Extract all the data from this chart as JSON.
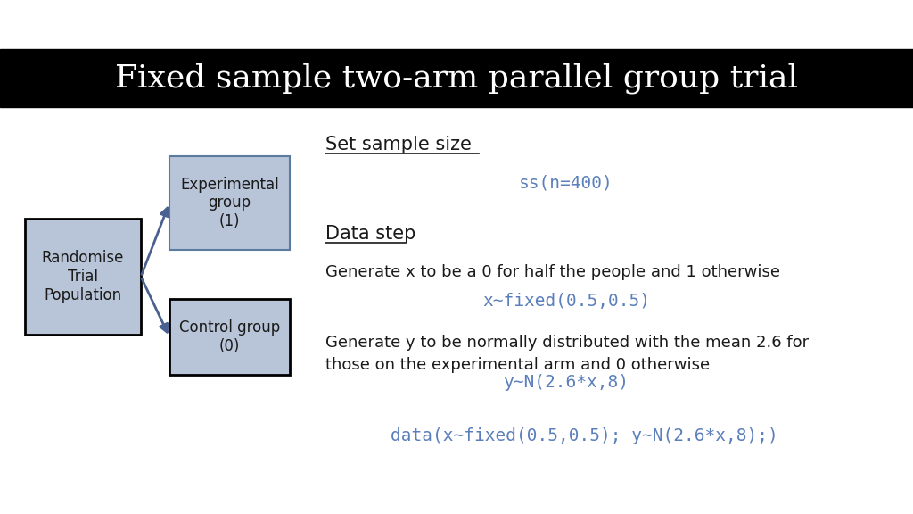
{
  "title": "Fixed sample two-arm parallel group trial",
  "title_color": "#ffffff",
  "title_bg_color": "#000000",
  "bg_color": "#ffffff",
  "box_fill_color": "#b8c4d8",
  "box_edge_color_rand": "#000000",
  "box_edge_color_exp": "#5a7aa0",
  "box_edge_color_ctrl": "#000000",
  "arrow_color": "#4a6090",
  "rand_box_text": "Randomise\nTrial\nPopulation",
  "exp_box_text": "Experimental\ngroup\n(1)",
  "ctrl_box_text": "Control group\n(0)",
  "section1_label": "Set sample size",
  "section1_code": "ss(n=400)",
  "section2_label": "Data step",
  "section2_text1": "Generate x to be a 0 for half the people and 1 otherwise",
  "section2_code1": "x~fixed(0.5,0.5)",
  "section2_text2": "Generate y to be normally distributed with the mean 2.6 for\nthose on the experimental arm and 0 otherwise",
  "section2_code2": "y~N(2.6*x,8)",
  "section3_code": "data(x~fixed(0.5,0.5); y~N(2.6*x,8);)",
  "code_color": "#5b7fba",
  "text_color": "#1a1a1a"
}
